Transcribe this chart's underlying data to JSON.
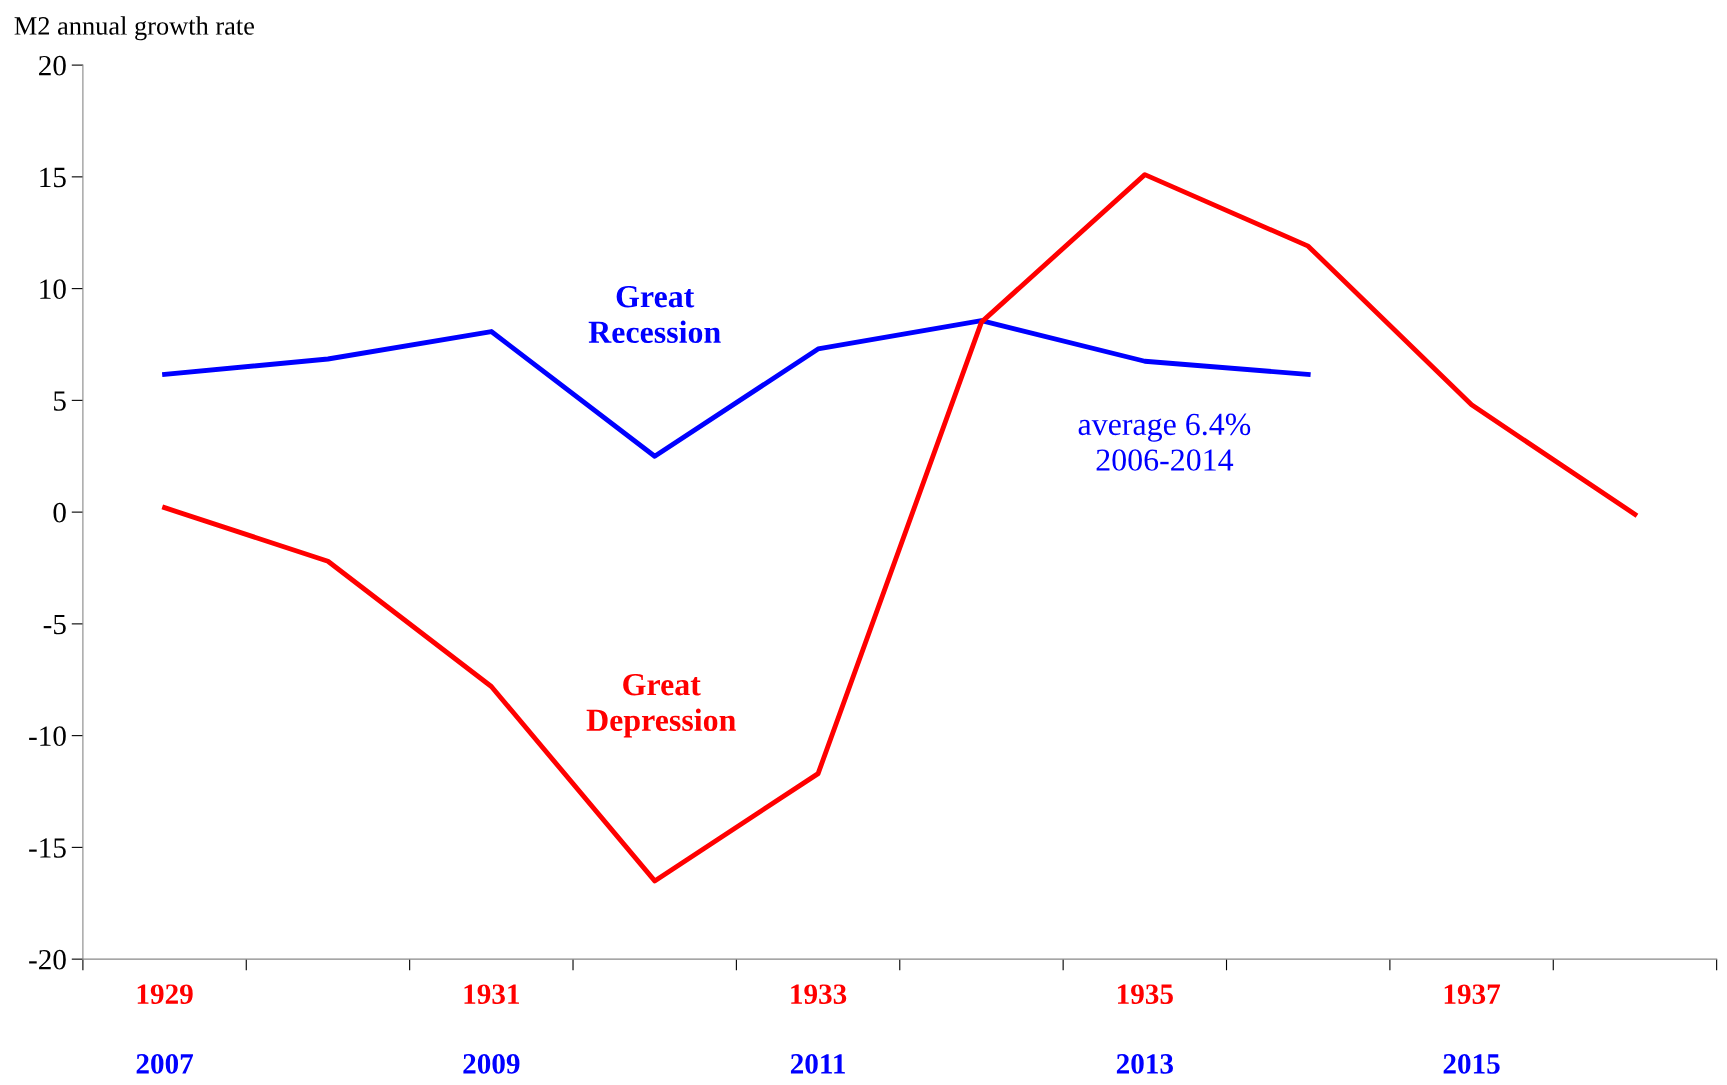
{
  "chart_data": {
    "type": "line",
    "ylabel": "M2 annual growth rate",
    "categories": [
      "1929",
      null,
      "1931",
      null,
      "1933",
      null,
      "1935",
      null,
      "1937",
      null
    ],
    "ylim": [
      -20,
      20
    ],
    "yticks": [
      -20,
      -15,
      -10,
      -5,
      0,
      5,
      10,
      15,
      20
    ],
    "grid": false,
    "legend": false,
    "marker": "none",
    "line_style": "solid",
    "series": [
      {
        "name": "Great\nRecession",
        "color": "#0000ff",
        "values": [
          6.16,
          6.85,
          8.08,
          2.5,
          7.3,
          8.57,
          6.75,
          6.16,
          null,
          null
        ]
      },
      {
        "name": "Great\nDepression",
        "color": "#ff0000",
        "values": [
          0.2,
          -2.2,
          -7.8,
          -16.5,
          -11.7,
          8.5,
          15.1,
          11.9,
          4.8,
          -0.1
        ]
      }
    ],
    "annotations": [
      "average 6.4%\n2006-2014",
      "2007",
      "2009",
      "2011",
      "2013",
      "2015"
    ]
  }
}
